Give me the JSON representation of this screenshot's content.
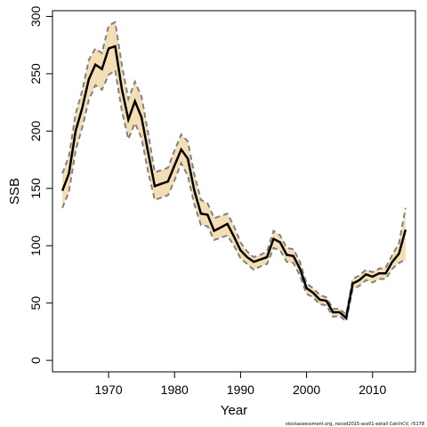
{
  "chart_data": {
    "type": "line",
    "xlabel": "Year",
    "ylabel": "SSB",
    "xlim": [
      1961.5,
      2016.5
    ],
    "ylim": [
      -10,
      305
    ],
    "x_ticks": [
      1970,
      1980,
      1990,
      2000,
      2010
    ],
    "x_tick_labels": [
      "1970",
      "1980",
      "1990",
      "2000",
      "2010"
    ],
    "y_ticks": [
      0,
      50,
      100,
      150,
      200,
      250,
      300
    ],
    "y_tick_labels": [
      "0",
      "50",
      "100",
      "150",
      "200",
      "250",
      "300"
    ],
    "grid": false,
    "band_color": "#F5DEB3",
    "line_color": "#000000",
    "bound_color": "#808080",
    "x": [
      1963,
      1964,
      1965,
      1966,
      1967,
      1968,
      1969,
      1970,
      1971,
      1972,
      1973,
      1974,
      1975,
      1976,
      1977,
      1978,
      1979,
      1980,
      1981,
      1982,
      1983,
      1984,
      1985,
      1986,
      1987,
      1988,
      1989,
      1990,
      1991,
      1992,
      1993,
      1994,
      1995,
      1996,
      1997,
      1998,
      1999,
      2000,
      2001,
      2002,
      2003,
      2004,
      2005,
      2006,
      2007,
      2008,
      2009,
      2010,
      2011,
      2012,
      2013,
      2014,
      2015
    ],
    "series": [
      {
        "values": [
          148,
          163,
          200,
          220,
          245,
          258,
          254,
          272,
          274,
          237,
          210,
          226,
          212,
          181,
          152,
          154,
          156,
          170,
          184,
          176,
          148,
          128,
          127,
          113,
          116,
          119,
          108,
          96,
          90,
          86,
          88,
          90,
          106,
          103,
          92,
          91,
          80,
          63,
          59,
          53,
          52,
          42,
          42,
          37,
          67,
          70,
          75,
          73,
          76,
          76,
          86,
          93,
          114
        ]
      },
      {
        "values": [
          163,
          178,
          215,
          235,
          262,
          272,
          268,
          292,
          295,
          258,
          228,
          243,
          230,
          198,
          164,
          166,
          168,
          183,
          197,
          191,
          162,
          140,
          137,
          124,
          126,
          128,
          117,
          103,
          95,
          90,
          92,
          95,
          113,
          109,
          98,
          97,
          86,
          67,
          63,
          57,
          55,
          45,
          45,
          40,
          71,
          74,
          79,
          77,
          80,
          81,
          92,
          102,
          133
        ]
      },
      {
        "values": [
          133,
          147,
          183,
          203,
          227,
          240,
          236,
          249,
          253,
          218,
          193,
          207,
          194,
          164,
          140,
          142,
          144,
          157,
          172,
          161,
          136,
          118,
          117,
          105,
          107,
          109,
          100,
          89,
          84,
          79,
          82,
          84,
          98,
          96,
          86,
          85,
          74,
          58,
          55,
          49,
          48,
          38,
          39,
          34,
          62,
          65,
          70,
          68,
          71,
          71,
          80,
          85,
          88
        ]
      }
    ]
  },
  "footer": "stockassessment.org, nscod2015-ass01-extall CatchCV, r5178"
}
